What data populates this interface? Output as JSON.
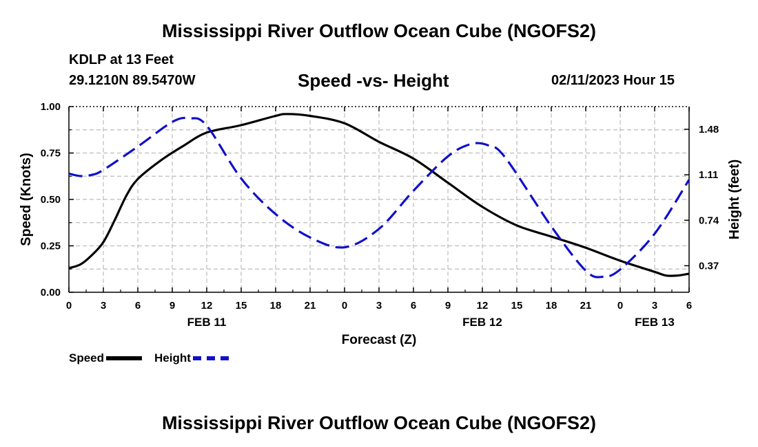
{
  "header": {
    "title": "Mississippi River Outflow Ocean Cube (NGOFS2)",
    "station": "KDLP at 13 Feet",
    "coords": "29.1210N  89.5470W",
    "subtitle": "Speed -vs- Height",
    "datetime": "02/11/2023 Hour 15"
  },
  "legend": {
    "speed_label": "Speed",
    "height_label": "Height"
  },
  "footer": {
    "title": "Mississippi River Outflow Ocean Cube (NGOFS2)"
  },
  "colors": {
    "speed": "#000000",
    "height": "#1010c8",
    "grid": "#bbbbbb"
  },
  "chart_data": {
    "type": "line",
    "xlabel": "Forecast (Z)",
    "ylabel": "Speed (Knots)",
    "y2label": "Height (feet)",
    "xlim": [
      0,
      54
    ],
    "ylim": [
      0,
      1.0
    ],
    "y2lim": [
      0.154,
      1.665
    ],
    "x_ticks": [
      0,
      3,
      6,
      9,
      12,
      15,
      18,
      21,
      24,
      27,
      30,
      33,
      36,
      39,
      42,
      45,
      48,
      51,
      54
    ],
    "x_tick_labels": [
      "0",
      "3",
      "6",
      "9",
      "12",
      "15",
      "18",
      "21",
      "0",
      "3",
      "6",
      "9",
      "12",
      "15",
      "18",
      "21",
      "0",
      "3",
      "6"
    ],
    "date_labels": [
      {
        "x": 12,
        "label": "FEB 11"
      },
      {
        "x": 36,
        "label": "FEB 12"
      },
      {
        "x": 51,
        "label": "FEB 13"
      }
    ],
    "y_ticks": [
      0,
      0.25,
      0.5,
      0.75,
      1.0
    ],
    "y_tick_labels": [
      "0.00",
      "0.25",
      "0.50",
      "0.75",
      "1.00"
    ],
    "y2_ticks": [
      0.37,
      0.74,
      1.11,
      1.48
    ],
    "y2_tick_labels": [
      "0.37",
      "0.74",
      "1.11",
      "1.48"
    ],
    "series": [
      {
        "name": "Speed",
        "axis": "left",
        "style": "solid",
        "x": [
          0,
          1,
          2,
          3,
          4,
          5,
          6,
          8,
          10,
          12,
          15,
          18,
          19,
          21,
          24,
          27,
          30,
          33,
          36,
          39,
          42,
          45,
          48,
          51,
          52,
          53,
          54
        ],
        "y": [
          0.13,
          0.15,
          0.2,
          0.27,
          0.39,
          0.52,
          0.61,
          0.71,
          0.79,
          0.86,
          0.9,
          0.95,
          0.96,
          0.95,
          0.91,
          0.81,
          0.72,
          0.59,
          0.46,
          0.36,
          0.3,
          0.24,
          0.17,
          0.11,
          0.09,
          0.09,
          0.1
        ]
      },
      {
        "name": "Height",
        "axis": "right",
        "style": "dashed",
        "x": [
          0,
          1,
          2,
          3,
          6,
          9,
          10.5,
          12,
          15,
          18,
          21,
          24,
          27,
          30,
          33,
          35,
          36.5,
          38,
          42,
          45,
          46.5,
          48,
          51,
          54
        ],
        "y": [
          1.12,
          1.1,
          1.11,
          1.15,
          1.34,
          1.54,
          1.57,
          1.51,
          1.08,
          0.79,
          0.6,
          0.52,
          0.67,
          0.98,
          1.26,
          1.36,
          1.35,
          1.25,
          0.69,
          0.33,
          0.28,
          0.34,
          0.63,
          1.07
        ]
      }
    ]
  }
}
